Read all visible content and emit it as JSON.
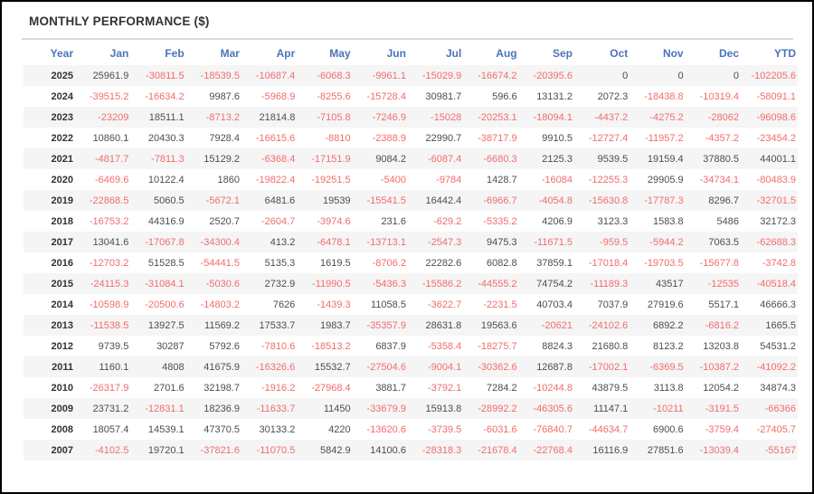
{
  "title": "MONTHLY PERFORMANCE ($)",
  "colors": {
    "title": "#333333",
    "header": "#4a74b9",
    "positive": "#4d4d4d",
    "negative": "#f26c6c",
    "stripe": "#f5f5f5",
    "divider": "#d9d9d9",
    "border": "#000000"
  },
  "table": {
    "columns": [
      "Year",
      "Jan",
      "Feb",
      "Mar",
      "Apr",
      "May",
      "Jun",
      "Jul",
      "Aug",
      "Sep",
      "Oct",
      "Nov",
      "Dec",
      "YTD"
    ],
    "rows": [
      {
        "year": "2025",
        "values": [
          "25961.9",
          "-30811.5",
          "-18539.5",
          "-10687.4",
          "-6068.3",
          "-9961.1",
          "-15029.9",
          "-16674.2",
          "-20395.6",
          "0",
          "0",
          "0",
          "-102205.6"
        ]
      },
      {
        "year": "2024",
        "values": [
          "-39515.2",
          "-16634.2",
          "9987.6",
          "-5968.9",
          "-8255.6",
          "-15728.4",
          "30981.7",
          "596.6",
          "13131.2",
          "2072.3",
          "-18438.8",
          "-10319.4",
          "-58091.1"
        ]
      },
      {
        "year": "2023",
        "values": [
          "-23209",
          "18511.1",
          "-8713.2",
          "21814.8",
          "-7105.8",
          "-7246.9",
          "-15028",
          "-20253.1",
          "-18094.1",
          "-4437.2",
          "-4275.2",
          "-28062",
          "-96098.6"
        ]
      },
      {
        "year": "2022",
        "values": [
          "10860.1",
          "20430.3",
          "7928.4",
          "-16615.6",
          "-8810",
          "-2388.9",
          "22990.7",
          "-38717.9",
          "9910.5",
          "-12727.4",
          "-11957.2",
          "-4357.2",
          "-23454.2"
        ]
      },
      {
        "year": "2021",
        "values": [
          "-4817.7",
          "-7811.3",
          "15129.2",
          "-6368.4",
          "-17151.9",
          "9084.2",
          "-6087.4",
          "-6680.3",
          "2125.3",
          "9539.5",
          "19159.4",
          "37880.5",
          "44001.1"
        ]
      },
      {
        "year": "2020",
        "values": [
          "-6469.6",
          "10122.4",
          "1860",
          "-19822.4",
          "-19251.5",
          "-5400",
          "-9784",
          "1428.7",
          "-16084",
          "-12255.3",
          "29905.9",
          "-34734.1",
          "-80483.9"
        ]
      },
      {
        "year": "2019",
        "values": [
          "-22868.5",
          "5060.5",
          "-5672.1",
          "6481.6",
          "19539",
          "-15541.5",
          "16442.4",
          "-6966.7",
          "-4054.8",
          "-15630.8",
          "-17787.3",
          "8296.7",
          "-32701.5"
        ]
      },
      {
        "year": "2018",
        "values": [
          "-16753.2",
          "44316.9",
          "2520.7",
          "-2604.7",
          "-3974.6",
          "231.6",
          "-629.2",
          "-5335.2",
          "4206.9",
          "3123.3",
          "1583.8",
          "5486",
          "32172.3"
        ]
      },
      {
        "year": "2017",
        "values": [
          "13041.6",
          "-17067.8",
          "-34300.4",
          "413.2",
          "-6478.1",
          "-13713.1",
          "-2547.3",
          "9475.3",
          "-11671.5",
          "-959.5",
          "-5944.2",
          "7063.5",
          "-62688.3"
        ]
      },
      {
        "year": "2016",
        "values": [
          "-12703.2",
          "51528.5",
          "-54441.5",
          "5135.3",
          "1619.5",
          "-8706.2",
          "22282.6",
          "6082.8",
          "37859.1",
          "-17018.4",
          "-19703.5",
          "-15677.8",
          "-3742.8"
        ]
      },
      {
        "year": "2015",
        "values": [
          "-24115.3",
          "-31084.1",
          "-5030.6",
          "2732.9",
          "-11990.5",
          "-5436.3",
          "-15586.2",
          "-44555.2",
          "74754.2",
          "-11189.3",
          "43517",
          "-12535",
          "-40518.4"
        ]
      },
      {
        "year": "2014",
        "values": [
          "-10598.9",
          "-20500.6",
          "-14803.2",
          "7626",
          "-1439.3",
          "11058.5",
          "-3622.7",
          "-2231.5",
          "40703.4",
          "7037.9",
          "27919.6",
          "5517.1",
          "46666.3"
        ]
      },
      {
        "year": "2013",
        "values": [
          "-11538.5",
          "13927.5",
          "11569.2",
          "17533.7",
          "1983.7",
          "-35357.9",
          "28631.8",
          "19563.6",
          "-20621",
          "-24102.6",
          "6892.2",
          "-6816.2",
          "1665.5"
        ]
      },
      {
        "year": "2012",
        "values": [
          "9739.5",
          "30287",
          "5792.6",
          "-7810.6",
          "-18513.2",
          "6837.9",
          "-5358.4",
          "-18275.7",
          "8824.3",
          "21680.8",
          "8123.2",
          "13203.8",
          "54531.2"
        ]
      },
      {
        "year": "2011",
        "values": [
          "1160.1",
          "4808",
          "41675.9",
          "-16326.6",
          "15532.7",
          "-27504.6",
          "-9004.1",
          "-30362.6",
          "12687.8",
          "-17002.1",
          "-6369.5",
          "-10387.2",
          "-41092.2"
        ]
      },
      {
        "year": "2010",
        "values": [
          "-26317.9",
          "2701.6",
          "32198.7",
          "-1916.2",
          "-27968.4",
          "3881.7",
          "-3792.1",
          "7284.2",
          "-10244.8",
          "43879.5",
          "3113.8",
          "12054.2",
          "34874.3"
        ]
      },
      {
        "year": "2009",
        "values": [
          "23731.2",
          "-12831.1",
          "18236.9",
          "-11633.7",
          "11450",
          "-33679.9",
          "15913.8",
          "-28992.2",
          "-46305.6",
          "11147.1",
          "-10211",
          "-3191.5",
          "-66366"
        ]
      },
      {
        "year": "2008",
        "values": [
          "18057.4",
          "14539.1",
          "47370.5",
          "30133.2",
          "4220",
          "-13620.6",
          "-3739.5",
          "-6031.6",
          "-76840.7",
          "-44634.7",
          "6900.6",
          "-3759.4",
          "-27405.7"
        ]
      },
      {
        "year": "2007",
        "values": [
          "-4102.5",
          "19720.1",
          "-37821.6",
          "-11070.5",
          "5842.9",
          "14100.6",
          "-28318.3",
          "-21678.4",
          "-22768.4",
          "16116.9",
          "27851.6",
          "-13039.4",
          "-55167"
        ]
      }
    ]
  }
}
